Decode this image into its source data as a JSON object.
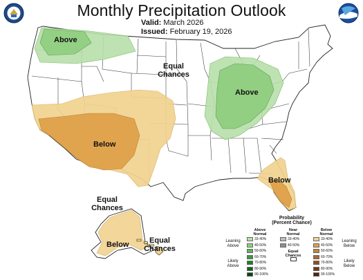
{
  "title": "Monthly Precipitation Outlook",
  "valid_label": "Valid:",
  "valid_value": "March 2026",
  "issued_label": "Issued:",
  "issued_value": "February 19, 2026",
  "logos": {
    "left": "doc-seal-icon",
    "right": "noaa-logo-icon"
  },
  "map_labels": {
    "above_nw": "Above",
    "above_midwest": "Above",
    "below_sw": "Below",
    "below_fl": "Below",
    "equal_center_1": "Equal",
    "equal_center_2": "Chances",
    "equal_ak_1": "Equal",
    "equal_ak_2": "Chances",
    "below_ak": "Below",
    "equal_hi_1": "Equal",
    "equal_hi_2": "Chances"
  },
  "legend": {
    "title_1": "Probability",
    "title_2": "(Percent Chance)",
    "above_header_1": "Above",
    "above_header_2": "Normal",
    "near_header_1": "Near",
    "near_header_2": "Normal",
    "below_header_1": "Below",
    "below_header_2": "Normal",
    "leaning_above_1": "Leaning",
    "leaning_above_2": "Above",
    "likely_above_1": "Likely",
    "likely_above_2": "Above",
    "leaning_below_1": "Leaning",
    "leaning_below_2": "Below",
    "likely_below_1": "Likely",
    "likely_below_2": "Below",
    "equal_1": "Equal",
    "equal_2": "Chances",
    "ranges": [
      "33-40%",
      "40-50%",
      "50-60%",
      "60-70%",
      "70-80%",
      "80-90%",
      "90-100%"
    ],
    "near_ranges": [
      "33-40%",
      "40-50%"
    ],
    "above_colors": [
      "#b7dfa8",
      "#8fce7f",
      "#5db55a",
      "#3a9a3c",
      "#237f2a",
      "#16631d",
      "#0c4410"
    ],
    "near_colors": [
      "#bdbdbd",
      "#8e8e8e"
    ],
    "below_colors": [
      "#f1d28f",
      "#dfa14a",
      "#c98337",
      "#b0672c",
      "#8f4e22",
      "#6f3a19",
      "#4d2611"
    ]
  }
}
